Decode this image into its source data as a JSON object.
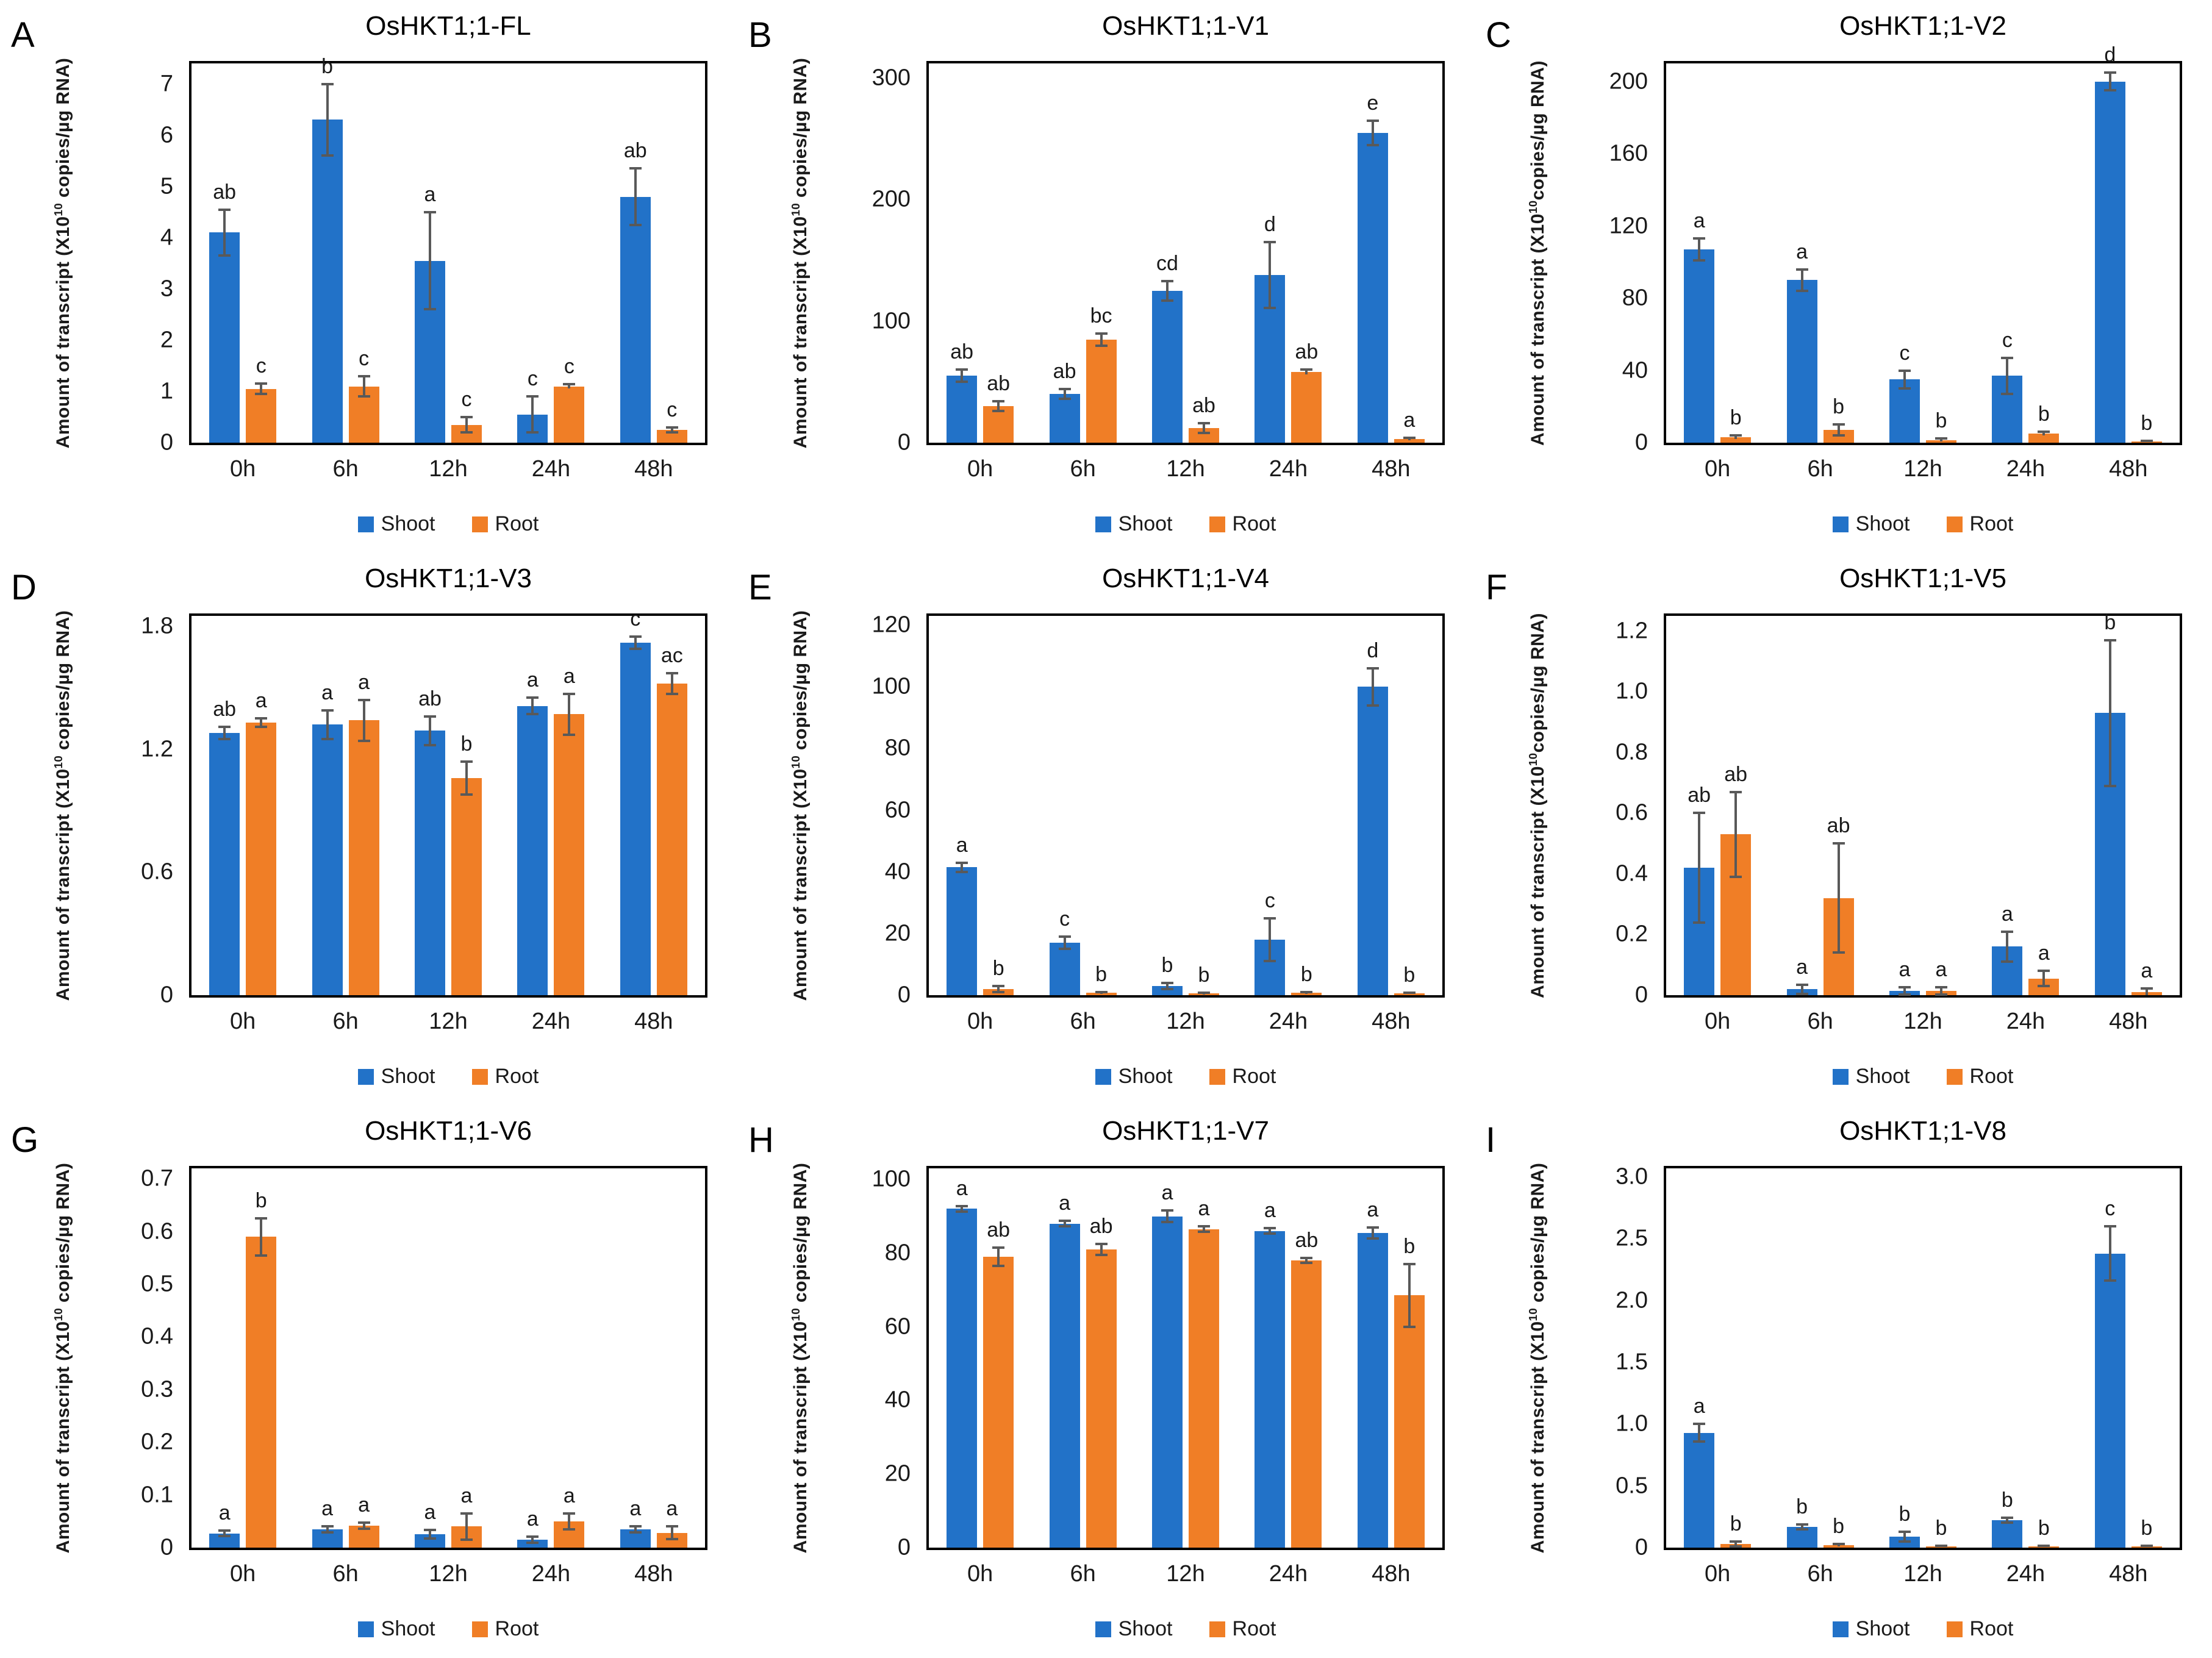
{
  "figure": {
    "legend_labels": [
      "Shoot",
      "Root"
    ],
    "colors": {
      "shoot": "#2272c8",
      "root": "#f07e26",
      "error_bar": "#595959",
      "axis": "#000000",
      "text": "#1a1a1a"
    },
    "categories": [
      "0h",
      "6h",
      "12h",
      "24h",
      "48h"
    ]
  },
  "chart_data": [
    {
      "id": "A",
      "type": "bar",
      "title": "OsHKT1;1-FL",
      "ylabel_pre": "Amount of transcript (X10",
      "ylabel_sup": "10",
      "ylabel_post": " copies/µg RNA)",
      "categories": [
        "0h",
        "6h",
        "12h",
        "24h",
        "48h"
      ],
      "ylim": [
        0,
        7.4
      ],
      "ytick_max": 7,
      "ytick_step": 1,
      "ytick_decimals": 0,
      "series": [
        {
          "name": "Shoot",
          "values": [
            4.1,
            6.3,
            3.55,
            0.55,
            4.8
          ],
          "errors": [
            0.45,
            0.7,
            0.95,
            0.35,
            0.55
          ],
          "letters": [
            "ab",
            "b",
            "a",
            "c",
            "ab"
          ]
        },
        {
          "name": "Root",
          "values": [
            1.05,
            1.1,
            0.35,
            1.1,
            0.25
          ],
          "errors": [
            0.1,
            0.2,
            0.15,
            0.04,
            0.05
          ],
          "letters": [
            "c",
            "c",
            "c",
            "c",
            "c"
          ]
        }
      ]
    },
    {
      "id": "B",
      "type": "bar",
      "title": "OsHKT1;1-V1",
      "ylabel_pre": "Amount of transcript (X10",
      "ylabel_sup": "10",
      "ylabel_post": " copies/µg RNA)",
      "categories": [
        "0h",
        "6h",
        "12h",
        "24h",
        "48h"
      ],
      "ylim": [
        0,
        312
      ],
      "ytick_max": 300,
      "ytick_step": 100,
      "ytick_decimals": 0,
      "series": [
        {
          "name": "Shoot",
          "values": [
            55,
            40,
            125,
            138,
            255
          ],
          "errors": [
            5,
            4,
            8,
            27,
            10
          ],
          "letters": [
            "ab",
            "ab",
            "cd",
            "d",
            "e"
          ]
        },
        {
          "name": "Root",
          "values": [
            30,
            85,
            12,
            58,
            3
          ],
          "errors": [
            4,
            5,
            4,
            2,
            1
          ],
          "letters": [
            "ab",
            "bc",
            "ab",
            "ab",
            "a"
          ]
        }
      ]
    },
    {
      "id": "C",
      "type": "bar",
      "title": "OsHKT1;1-V2",
      "ylabel_pre": "Amount of transcript (X10",
      "ylabel_sup": "10",
      "ylabel_post": "copies/µg RNA)",
      "categories": [
        "0h",
        "6h",
        "12h",
        "24h",
        "48h"
      ],
      "ylim": [
        0,
        210
      ],
      "ytick_max": 200,
      "ytick_step": 40,
      "ytick_decimals": 0,
      "series": [
        {
          "name": "Shoot",
          "values": [
            107,
            90,
            35,
            37,
            200
          ],
          "errors": [
            6,
            6,
            5,
            10,
            5
          ],
          "letters": [
            "a",
            "a",
            "c",
            "c",
            "d"
          ]
        },
        {
          "name": "Root",
          "values": [
            3,
            7,
            1.5,
            5,
            0.7
          ],
          "errors": [
            1,
            3,
            0.8,
            1,
            0.3
          ],
          "letters": [
            "b",
            "b",
            "b",
            "b",
            "b"
          ]
        }
      ]
    },
    {
      "id": "D",
      "type": "bar",
      "title": "OsHKT1;1-V3",
      "ylabel_pre": "Amount of transcript (X10",
      "ylabel_sup": "10",
      "ylabel_post": " copies/µg RNA)",
      "categories": [
        "0h",
        "6h",
        "12h",
        "24h",
        "48h"
      ],
      "ylim": [
        0,
        1.85
      ],
      "ytick_max": 1.8,
      "ytick_step": 0.6,
      "ytick_decimals": 1,
      "series": [
        {
          "name": "Shoot",
          "values": [
            1.28,
            1.32,
            1.29,
            1.41,
            1.72
          ],
          "errors": [
            0.03,
            0.07,
            0.07,
            0.04,
            0.03
          ],
          "letters": [
            "ab",
            "a",
            "ab",
            "a",
            "c"
          ]
        },
        {
          "name": "Root",
          "values": [
            1.33,
            1.34,
            1.06,
            1.37,
            1.52
          ],
          "errors": [
            0.02,
            0.1,
            0.08,
            0.1,
            0.05
          ],
          "letters": [
            "a",
            "a",
            "b",
            "a",
            "ac"
          ]
        }
      ]
    },
    {
      "id": "E",
      "type": "bar",
      "title": "OsHKT1;1-V4",
      "ylabel_pre": "Amount of transcript (X10",
      "ylabel_sup": "10",
      "ylabel_post": " copies/µg RNA)",
      "categories": [
        "0h",
        "6h",
        "12h",
        "24h",
        "48h"
      ],
      "ylim": [
        0,
        123
      ],
      "ytick_max": 120,
      "ytick_step": 20,
      "ytick_decimals": 0,
      "series": [
        {
          "name": "Shoot",
          "values": [
            41.5,
            17,
            3,
            18,
            100
          ],
          "errors": [
            1.5,
            2,
            1,
            7,
            6
          ],
          "letters": [
            "a",
            "c",
            "b",
            "c",
            "d"
          ]
        },
        {
          "name": "Root",
          "values": [
            2,
            0.7,
            0.5,
            0.7,
            0.5
          ],
          "errors": [
            1,
            0.3,
            0.3,
            0.3,
            0.2
          ],
          "letters": [
            "b",
            "b",
            "b",
            "b",
            "b"
          ]
        }
      ]
    },
    {
      "id": "F",
      "type": "bar",
      "title": "OsHKT1;1-V5",
      "ylabel_pre": "Amount of transcript (X10",
      "ylabel_sup": "10",
      "ylabel_post": "copies/µg RNA)",
      "categories": [
        "0h",
        "6h",
        "12h",
        "24h",
        "48h"
      ],
      "ylim": [
        0,
        1.25
      ],
      "ytick_max": 1.2,
      "ytick_step": 0.2,
      "ytick_decimals": 1,
      "series": [
        {
          "name": "Shoot",
          "values": [
            0.42,
            0.02,
            0.015,
            0.16,
            0.93
          ],
          "errors": [
            0.18,
            0.015,
            0.012,
            0.05,
            0.24
          ],
          "letters": [
            "ab",
            "a",
            "a",
            "a",
            "b"
          ]
        },
        {
          "name": "Root",
          "values": [
            0.53,
            0.32,
            0.015,
            0.055,
            0.01
          ],
          "errors": [
            0.14,
            0.18,
            0.012,
            0.025,
            0.012
          ],
          "letters": [
            "ab",
            "ab",
            "a",
            "a",
            "a"
          ]
        }
      ]
    },
    {
      "id": "G",
      "type": "bar",
      "title": "OsHKT1;1-V6",
      "ylabel_pre": "Amount of transcript (X10",
      "ylabel_sup": "10",
      "ylabel_post": " copies/µg RNA)",
      "categories": [
        "0h",
        "6h",
        "12h",
        "24h",
        "48h"
      ],
      "ylim": [
        0,
        0.72
      ],
      "ytick_max": 0.7,
      "ytick_step": 0.1,
      "ytick_decimals": 1,
      "series": [
        {
          "name": "Shoot",
          "values": [
            0.027,
            0.035,
            0.025,
            0.015,
            0.035
          ],
          "errors": [
            0.005,
            0.006,
            0.008,
            0.006,
            0.006
          ],
          "letters": [
            "a",
            "a",
            "a",
            "a",
            "a"
          ]
        },
        {
          "name": "Root",
          "values": [
            0.59,
            0.042,
            0.04,
            0.05,
            0.028
          ],
          "errors": [
            0.035,
            0.006,
            0.025,
            0.015,
            0.012
          ],
          "letters": [
            "b",
            "a",
            "a",
            "a",
            "a"
          ]
        }
      ]
    },
    {
      "id": "H",
      "type": "bar",
      "title": "OsHKT1;1-V7",
      "ylabel_pre": "Amount of transcript (X10",
      "ylabel_sup": "10",
      "ylabel_post": " copies/µg RNA)",
      "categories": [
        "0h",
        "6h",
        "12h",
        "24h",
        "48h"
      ],
      "ylim": [
        0,
        103
      ],
      "ytick_max": 100,
      "ytick_step": 20,
      "ytick_decimals": 0,
      "series": [
        {
          "name": "Shoot",
          "values": [
            92,
            88,
            90,
            86,
            85.5
          ],
          "errors": [
            0.7,
            0.7,
            1.5,
            0.7,
            1.5
          ],
          "letters": [
            "a",
            "a",
            "a",
            "a",
            "a"
          ]
        },
        {
          "name": "Root",
          "values": [
            79,
            81,
            86.5,
            78,
            68.5
          ],
          "errors": [
            2.5,
            1.5,
            0.7,
            0.7,
            8.5
          ],
          "letters": [
            "ab",
            "ab",
            "a",
            "ab",
            "b"
          ]
        }
      ]
    },
    {
      "id": "I",
      "type": "bar",
      "title": "OsHKT1;1-V8",
      "ylabel_pre": "Amount of transcript (X10",
      "ylabel_sup": "10",
      "ylabel_post": " copies/µg RNA)",
      "categories": [
        "0h",
        "6h",
        "12h",
        "24h",
        "48h"
      ],
      "ylim": [
        0,
        3.07
      ],
      "ytick_max": 3.0,
      "ytick_step": 0.5,
      "ytick_decimals": 1,
      "series": [
        {
          "name": "Shoot",
          "values": [
            0.93,
            0.17,
            0.09,
            0.22,
            2.38
          ],
          "errors": [
            0.07,
            0.02,
            0.04,
            0.02,
            0.22
          ],
          "letters": [
            "a",
            "b",
            "b",
            "b",
            "c"
          ]
        },
        {
          "name": "Root",
          "values": [
            0.03,
            0.02,
            0.01,
            0.01,
            0.01
          ],
          "errors": [
            0.02,
            0.01,
            0.005,
            0.005,
            0.005
          ],
          "letters": [
            "b",
            "b",
            "b",
            "b",
            "b"
          ]
        }
      ]
    }
  ]
}
